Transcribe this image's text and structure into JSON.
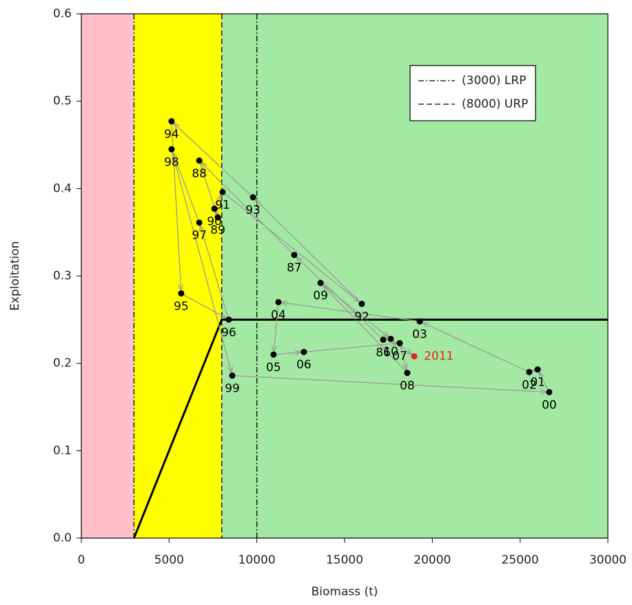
{
  "chart_data": {
    "type": "scatter",
    "x_label": "Biomass (t)",
    "y_label": "Exploitation",
    "xlim": [
      0,
      30000
    ],
    "ylim": [
      0,
      0.6
    ],
    "xticks": [
      0,
      5000,
      10000,
      15000,
      20000,
      25000,
      30000
    ],
    "yticks": [
      {
        "value": 0,
        "label": "0.0"
      },
      0.1,
      0.2,
      0.3,
      0.4,
      0.5,
      0.6
    ],
    "zones": [
      {
        "xmin": 0,
        "xmax": 3000,
        "color": "#ffc0cb"
      },
      {
        "xmin": 3000,
        "xmax": 8000,
        "color": "#ffff00"
      },
      {
        "xmin": 8000,
        "xmax": 30000,
        "color": "#a3e9a3"
      }
    ],
    "reference_lines": [
      {
        "x": 3000,
        "style": "dashdot"
      },
      {
        "x": 8000,
        "style": "dashed"
      },
      {
        "x": 10000,
        "style": "dashdot"
      }
    ],
    "legend": [
      {
        "label": "(3000) LRP",
        "style": "dashdot"
      },
      {
        "label": "(8000) URP",
        "style": "dashed"
      }
    ],
    "control_rule": {
      "x": [
        3000,
        8000,
        30000
      ],
      "values": [
        0,
        0.25,
        0.25
      ]
    },
    "arrow_color": "#999999",
    "series": [
      {
        "color": "#000000",
        "labels": [
          "86",
          "87",
          "88",
          "89",
          "90",
          "91",
          "92",
          "93",
          "94",
          "95",
          "96",
          "97",
          "98",
          "99",
          "00",
          "01",
          "02",
          "03",
          "04",
          "05",
          "06",
          "07",
          "08",
          "09",
          "10"
        ],
        "x": [
          17200,
          12130,
          6720,
          7780,
          7580,
          8050,
          15980,
          9780,
          5140,
          5690,
          8400,
          6720,
          5140,
          8600,
          26660,
          26000,
          25520,
          19280,
          11230,
          10950,
          12680,
          18140,
          18570,
          13630,
          17630
        ],
        "values": [
          0.227,
          0.324,
          0.432,
          0.367,
          0.377,
          0.396,
          0.268,
          0.39,
          0.477,
          0.28,
          0.25,
          0.361,
          0.445,
          0.186,
          0.167,
          0.193,
          0.19,
          0.248,
          0.27,
          0.21,
          0.213,
          0.223,
          0.189,
          0.292,
          0.228
        ]
      },
      {
        "color": "#e8221a",
        "labels": [
          "2011"
        ],
        "x": [
          18970
        ],
        "values": [
          0.208
        ]
      }
    ]
  }
}
